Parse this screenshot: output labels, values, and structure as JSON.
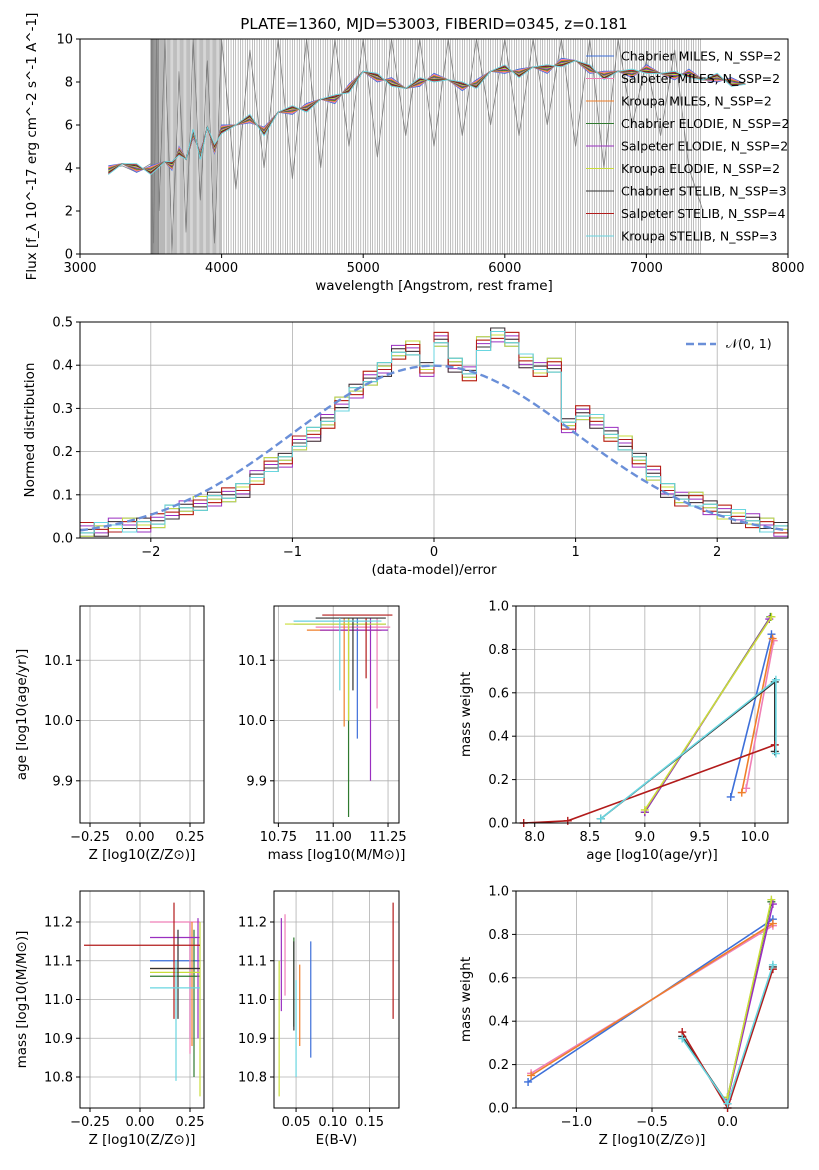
{
  "colors": {
    "chabrier_miles": "#3d6fd9",
    "salpeter_miles": "#ef7fb6",
    "kroupa_miles": "#ef7f2a",
    "chabrier_elodie": "#2f7a2f",
    "salpeter_elodie": "#9a2fc0",
    "kroupa_elodie": "#c9dd3a",
    "chabrier_stelib": "#333333",
    "salpeter_stelib": "#b21b1b",
    "kroupa_stelib": "#69d6e0",
    "data_gray": "#7f7f7f",
    "normal_curve": "#6a8fd8"
  },
  "chart_data": [
    {
      "id": "spectrum",
      "type": "line",
      "title": "PLATE=1360, MJD=53003, FIBERID=0345, z=0.181",
      "xlabel": "wavelength [Angstrom, rest frame]",
      "ylabel": "Flux [f_λ 10^-17 erg cm^-2 s^-1 A^-1]",
      "xlim": [
        3000,
        8000
      ],
      "ylim": [
        0,
        10
      ],
      "xticks": [
        "3000",
        "4000",
        "5000",
        "6000",
        "7000",
        "8000"
      ],
      "yticks": [
        "0",
        "2",
        "4",
        "6",
        "8",
        "10"
      ],
      "grid": false,
      "legend_position": "top-right",
      "legend": [
        {
          "name": "Chabrier MILES, N_SSP=2",
          "color_key": "chabrier_miles"
        },
        {
          "name": "Salpeter MILES, N_SSP=2",
          "color_key": "salpeter_miles"
        },
        {
          "name": "Kroupa MILES, N_SSP=2",
          "color_key": "kroupa_miles"
        },
        {
          "name": "Chabrier ELODIE, N_SSP=2",
          "color_key": "chabrier_elodie"
        },
        {
          "name": "Salpeter ELODIE, N_SSP=2",
          "color_key": "salpeter_elodie"
        },
        {
          "name": "Kroupa ELODIE, N_SSP=2",
          "color_key": "kroupa_elodie"
        },
        {
          "name": "Chabrier STELIB, N_SSP=3",
          "color_key": "chabrier_stelib"
        },
        {
          "name": "Salpeter STELIB, N_SSP=4",
          "color_key": "salpeter_stelib"
        },
        {
          "name": "Kroupa STELIB, N_SSP=3",
          "color_key": "kroupa_stelib"
        }
      ],
      "model_x": [
        3200,
        3300,
        3400,
        3500,
        3600,
        3650,
        3700,
        3750,
        3800,
        3850,
        3900,
        3950,
        4000,
        4100,
        4200,
        4300,
        4400,
        4500,
        4600,
        4700,
        4800,
        4900,
        5000,
        5100,
        5200,
        5300,
        5400,
        5500,
        5600,
        5700,
        5800,
        5900,
        6000,
        6100,
        6200,
        6300,
        6400,
        6500,
        6600,
        6700,
        6800,
        6900,
        7000,
        7100,
        7200,
        7300,
        7400,
        7500,
        7600,
        7700
      ],
      "model_y": [
        3.9,
        4.2,
        4.0,
        3.9,
        4.3,
        4.1,
        4.8,
        4.4,
        5.6,
        4.6,
        5.9,
        4.9,
        5.8,
        6.0,
        6.3,
        5.7,
        6.6,
        6.7,
        6.8,
        7.2,
        7.2,
        7.7,
        8.5,
        8.2,
        8.0,
        7.7,
        8.0,
        8.2,
        8.1,
        7.8,
        7.9,
        8.5,
        8.6,
        8.4,
        8.7,
        8.6,
        8.9,
        9.0,
        8.6,
        8.3,
        8.5,
        8.4,
        8.6,
        8.4,
        8.3,
        8.4,
        8.1,
        8.2,
        8.0,
        7.9
      ],
      "data_x": [
        3200,
        3300,
        3400,
        3500,
        3520,
        3540,
        3560,
        3600,
        3650,
        3700,
        3750,
        3800,
        3850,
        3900,
        3950,
        4000,
        4100,
        4200,
        4300,
        4400,
        4500,
        4600,
        4700,
        4800,
        4900,
        5000,
        5100,
        5200,
        5300,
        5400,
        5500,
        5600,
        5700,
        5800,
        5900,
        6000,
        6100,
        6200,
        6300,
        6400,
        6500,
        6600,
        6700,
        6800,
        6900,
        7000,
        7100,
        7200,
        7300,
        7400
      ],
      "data_y": [
        4.0,
        4.1,
        3.8,
        4.2,
        0.5,
        10,
        2.0,
        10,
        0,
        8.5,
        1.0,
        10,
        2.5,
        9.0,
        0.5,
        10,
        3.0,
        9.5,
        4.0,
        10,
        3.5,
        10,
        4.0,
        10,
        5.0,
        10,
        4.5,
        10,
        5.5,
        10,
        5.0,
        10,
        5.5,
        10,
        6.0,
        10,
        5.5,
        10,
        6.0,
        10,
        5.0,
        10,
        4.0,
        10,
        6.0,
        9.0,
        5.5,
        9.5,
        4.0,
        2.0
      ]
    },
    {
      "id": "residuals",
      "type": "line",
      "xlabel": "(data-model)/error",
      "ylabel": "Normed distribution",
      "xlim": [
        -2.5,
        2.5
      ],
      "ylim": [
        0,
        0.5
      ],
      "xticks": [
        "−2",
        "−1",
        "0",
        "1",
        "2"
      ],
      "yticks": [
        "0.0",
        "0.1",
        "0.2",
        "0.3",
        "0.4",
        "0.5"
      ],
      "grid": true,
      "legend_position": "top-right",
      "legend": [
        {
          "name": "𝒩(0, 1)",
          "color_key": "normal_curve"
        }
      ],
      "bin_edges": [
        -2.5,
        -2.4,
        -2.3,
        -2.2,
        -2.1,
        -2.0,
        -1.9,
        -1.8,
        -1.7,
        -1.6,
        -1.5,
        -1.4,
        -1.3,
        -1.2,
        -1.1,
        -1.0,
        -0.9,
        -0.8,
        -0.7,
        -0.6,
        -0.5,
        -0.4,
        -0.3,
        -0.2,
        -0.1,
        0.0,
        0.1,
        0.2,
        0.3,
        0.4,
        0.5,
        0.6,
        0.7,
        0.8,
        0.9,
        1.0,
        1.1,
        1.2,
        1.3,
        1.4,
        1.5,
        1.6,
        1.7,
        1.8,
        1.9,
        2.0,
        2.1,
        2.2,
        2.3,
        2.4,
        2.5
      ],
      "histogram_values": [
        0.02,
        0.02,
        0.03,
        0.03,
        0.03,
        0.04,
        0.06,
        0.07,
        0.08,
        0.09,
        0.1,
        0.11,
        0.14,
        0.17,
        0.18,
        0.22,
        0.24,
        0.27,
        0.31,
        0.34,
        0.37,
        0.39,
        0.43,
        0.44,
        0.39,
        0.46,
        0.4,
        0.38,
        0.45,
        0.47,
        0.46,
        0.41,
        0.39,
        0.4,
        0.26,
        0.29,
        0.27,
        0.24,
        0.22,
        0.18,
        0.15,
        0.11,
        0.09,
        0.09,
        0.07,
        0.06,
        0.05,
        0.04,
        0.03,
        0.02
      ]
    },
    {
      "id": "age_vs_Z",
      "type": "scatter",
      "xlabel": "Z [log10(Z/Z⊙)]",
      "ylabel": "age  [log10(age/yr)]",
      "xlim": [
        -0.3,
        0.32
      ],
      "ylim": [
        9.83,
        10.19
      ],
      "xticks": [
        "−0.25",
        "0.00",
        "0.25"
      ],
      "yticks": [
        "9.9",
        "10.0",
        "10.1"
      ],
      "grid": true
    },
    {
      "id": "age_vs_mass",
      "type": "scatter",
      "xlabel": "mass [log10(M/M⊙)]",
      "xlim": [
        10.73,
        11.3
      ],
      "ylim": [
        9.83,
        10.19
      ],
      "xticks": [
        "10.75",
        "11.00",
        "11.25"
      ],
      "yticks": [
        "9.9",
        "10.0",
        "10.1"
      ],
      "grid": true
    },
    {
      "id": "weight_vs_age",
      "type": "line",
      "xlabel": "age  [log10(age/yr)]",
      "ylabel": "mass weight",
      "xlim": [
        7.83,
        10.3
      ],
      "ylim": [
        0,
        1
      ],
      "xticks": [
        "8.0",
        "8.5",
        "9.0",
        "9.5",
        "10.0"
      ],
      "yticks": [
        "0.0",
        "0.2",
        "0.4",
        "0.6",
        "0.8",
        "1.0"
      ],
      "grid": true
    },
    {
      "id": "mass_vs_Z",
      "type": "scatter",
      "xlabel": "Z [log10(Z/Z⊙)]",
      "ylabel": "mass [log10(M/M⊙)]",
      "xlim": [
        -0.3,
        0.32
      ],
      "ylim": [
        10.72,
        11.28
      ],
      "xticks": [
        "−0.25",
        "0.00",
        "0.25"
      ],
      "yticks": [
        "10.8",
        "10.9",
        "11.0",
        "11.1",
        "11.2"
      ],
      "grid": true
    },
    {
      "id": "mass_vs_ebv",
      "type": "scatter",
      "xlabel": "E(B-V)",
      "xlim": [
        0.02,
        0.19
      ],
      "ylim": [
        10.72,
        11.28
      ],
      "xticks": [
        "0.05",
        "0.10",
        "0.15"
      ],
      "yticks": [
        "10.8",
        "10.9",
        "11.0",
        "11.1",
        "11.2"
      ],
      "grid": true
    },
    {
      "id": "weight_vs_Z",
      "type": "line",
      "xlabel": "Z [log10(Z/Z⊙)]",
      "ylabel": "mass weight",
      "xlim": [
        -1.4,
        0.4
      ],
      "ylim": [
        0,
        1
      ],
      "xticks": [
        "−1.0",
        "−0.5",
        "0.0"
      ],
      "yticks": [
        "0.0",
        "0.2",
        "0.4",
        "0.6",
        "0.8",
        "1.0"
      ],
      "grid": true
    }
  ]
}
